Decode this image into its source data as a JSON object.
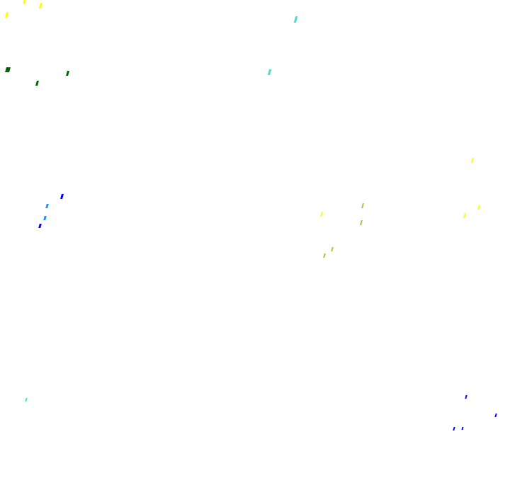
{
  "palette": {
    "yellow": "#ffff00",
    "dark_green": "#006400",
    "turquoise": "#40e0d0",
    "blue": "#0000ff",
    "light_blue": "#1e90ff",
    "yellow_green": "#9acd32"
  },
  "specks": [
    {
      "color": "yellow"
    },
    {
      "color": "yellow"
    },
    {
      "color": "yellow"
    },
    {
      "color": "dark_green"
    },
    {
      "color": "dark_green"
    },
    {
      "color": "dark_green"
    },
    {
      "color": "turquoise"
    },
    {
      "color": "turquoise"
    },
    {
      "color": "turquoise"
    },
    {
      "color": "blue"
    },
    {
      "color": "light_blue"
    },
    {
      "color": "light_blue"
    },
    {
      "color": "blue"
    },
    {
      "color": "yellow"
    },
    {
      "color": "yellow"
    },
    {
      "color": "yellow"
    },
    {
      "color": "yellow"
    },
    {
      "color": "yellow_green"
    },
    {
      "color": "yellow_green"
    },
    {
      "color": "yellow_green"
    },
    {
      "color": "yellow_green"
    },
    {
      "color": "blue"
    },
    {
      "color": "blue"
    },
    {
      "color": "blue"
    },
    {
      "color": "blue"
    }
  ]
}
